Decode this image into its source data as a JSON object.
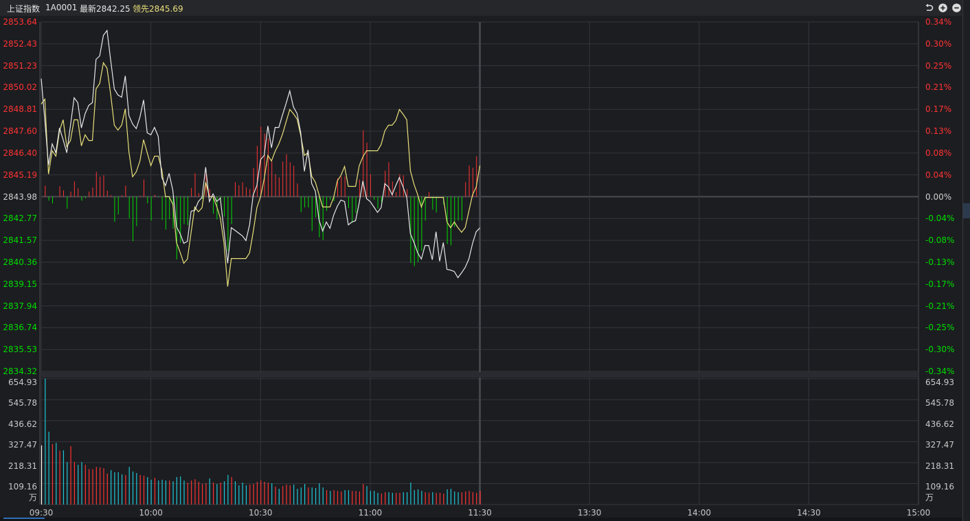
{
  "header": {
    "index_name": "上证指数",
    "code": "1A0001",
    "latest_label": "最新",
    "latest_value": "2842.25",
    "leading_label": "领先",
    "leading_value": "2845.69"
  },
  "toolbar": {
    "icons": [
      "undo-icon",
      "zoom-in-icon",
      "zoom-out-icon"
    ]
  },
  "colors": {
    "background": "#1c1d21",
    "grid": "#35363b",
    "up": "#ff3333",
    "down": "#00dd00",
    "volume_down": "#1ec8d8",
    "latest_line": "#e8e8e8",
    "leading_line": "#e8e07a"
  },
  "chart_data": [
    {
      "type": "line",
      "title": "",
      "x_unit": "time",
      "time_ticks": [
        "09:30",
        "10:00",
        "10:30",
        "11:00",
        "11:30",
        "13:30",
        "14:00",
        "14:30",
        "15:00"
      ],
      "start_time": "09:30",
      "minutes_per_point": 1,
      "prev_close": 2843.98,
      "ylim": [
        2834.32,
        2853.64
      ],
      "y_ticks_left": [
        "2853.64",
        "2852.43",
        "2851.23",
        "2850.02",
        "2848.81",
        "2847.60",
        "2846.40",
        "2845.19",
        "2843.98",
        "2842.77",
        "2841.57",
        "2840.36",
        "2839.15",
        "2837.94",
        "2836.74",
        "2835.53",
        "2834.32"
      ],
      "y_ticks_right": [
        "0.34%",
        "0.30%",
        "0.25%",
        "0.21%",
        "0.17%",
        "0.13%",
        "0.08%",
        "0.04%",
        "0.00%",
        "-0.04%",
        "-0.08%",
        "-0.13%",
        "-0.17%",
        "-0.21%",
        "-0.25%",
        "-0.30%",
        "-0.34%"
      ],
      "grid": true,
      "series": [
        {
          "name": "最新",
          "color": "#e8e8e8",
          "values": [
            2850.51,
            2848.19,
            2845.73,
            2846.9,
            2846.41,
            2847.78,
            2847.13,
            2846.41,
            2847.93,
            2849.45,
            2849.18,
            2847.78,
            2848.57,
            2849.03,
            2849.18,
            2851.57,
            2851.76,
            2852.9,
            2853.17,
            2851.53,
            2849.94,
            2849.6,
            2849.48,
            2850.66,
            2848.46,
            2848.0,
            2847.74,
            2848.38,
            2849.33,
            2847.51,
            2847.4,
            2847.81,
            2847.32,
            2845.04,
            2844.59,
            2845.27,
            2844.32,
            2842.31,
            2841.93,
            2841.4,
            2841.51,
            2843.18,
            2843.22,
            2843.71,
            2843.94,
            2845.61,
            2843.71,
            2844.13,
            2843.71,
            2843.9,
            2842.12,
            2840.3,
            2842.27,
            2842.12,
            2841.97,
            2841.82,
            2841.55,
            2842.42,
            2844.09,
            2844.59,
            2846.03,
            2846.26,
            2847.89,
            2846.68,
            2847.81,
            2847.81,
            2848.5,
            2849.14,
            2849.83,
            2848.95,
            2848.57,
            2847.51,
            2845.38,
            2846.56,
            2844.7,
            2844.28,
            2842.69,
            2842.08,
            2842.58,
            2842.23,
            2842.96,
            2843.45,
            2843.79,
            2843.71,
            2842.42,
            2842.58,
            2842.65,
            2843.64,
            2844.85,
            2843.87,
            2843.71,
            2843.41,
            2843.11,
            2843.37,
            2844.7,
            2844.51,
            2844.09,
            2844.59,
            2845.04,
            2844.51,
            2843.94,
            2841.93,
            2841.44,
            2840.87,
            2840.53,
            2841.28,
            2841.28,
            2840.49,
            2842.04,
            2840.41,
            2841.44,
            2839.96,
            2839.92,
            2839.84,
            2839.5,
            2839.77,
            2840.07,
            2840.53,
            2841.4,
            2842.04,
            2842.25
          ]
        },
        {
          "name": "领先",
          "color": "#e8e07a",
          "values": [
            2849.1,
            2849.37,
            2845.23,
            2846.52,
            2846.22,
            2847.62,
            2848.23,
            2846.75,
            2847.09,
            2848.23,
            2848.23,
            2846.79,
            2847.4,
            2847.09,
            2847.09,
            2849.94,
            2850.24,
            2851.38,
            2851.08,
            2849.64,
            2847.93,
            2847.66,
            2847.93,
            2848.84,
            2846.45,
            2845.08,
            2845.35,
            2845.95,
            2847.13,
            2846.41,
            2845.69,
            2846.22,
            2846.22,
            2845.46,
            2843.98,
            2843.98,
            2843.56,
            2841.44,
            2840.91,
            2840.3,
            2840.53,
            2842.01,
            2843.41,
            2843.14,
            2843.37,
            2844.78,
            2843.98,
            2843.98,
            2843.45,
            2842.8,
            2841.44,
            2839.01,
            2840.56,
            2840.56,
            2840.56,
            2840.56,
            2840.56,
            2840.87,
            2842.04,
            2843.37,
            2843.98,
            2844.97,
            2846.26,
            2845.95,
            2846.49,
            2846.9,
            2847.43,
            2848.12,
            2848.8,
            2848.57,
            2848.27,
            2847.36,
            2846.26,
            2846.41,
            2845.12,
            2844.78,
            2844.09,
            2843.41,
            2843.41,
            2843.41,
            2843.94,
            2844.85,
            2845.16,
            2845.65,
            2844.55,
            2844.55,
            2844.55,
            2845.69,
            2846.18,
            2846.52,
            2846.52,
            2846.52,
            2846.52,
            2846.86,
            2847.62,
            2847.93,
            2847.93,
            2848.19,
            2848.8,
            2848.54,
            2848.23,
            2845.42,
            2844.66,
            2844.09,
            2843.41,
            2843.94,
            2843.94,
            2843.94,
            2843.94,
            2843.94,
            2843.94,
            2842.58,
            2842.27,
            2842.58,
            2842.27,
            2842.01,
            2842.27,
            2843.18,
            2844.09,
            2844.51,
            2845.69
          ]
        }
      ],
      "strength_bars": {
        "baseline": 2843.98,
        "values": [
          0,
          0.61,
          -0.22,
          -0.37,
          0,
          0.58,
          0.35,
          -0.66,
          0.28,
          0.84,
          0.46,
          -0.22,
          -0.09,
          0.28,
          0.5,
          1.37,
          1.11,
          1.18,
          0.33,
          0.08,
          -1.39,
          -0.98,
          0.08,
          0.61,
          -1.19,
          -2.46,
          -1.63,
          0.04,
          0.95,
          -0.37,
          -1.32,
          0.1,
          -0.03,
          -1.29,
          -1.82,
          -1.25,
          -1.76,
          -3.47,
          -2.55,
          -1.52,
          -1.57,
          0.48,
          1.3,
          0.2,
          -0.13,
          1.26,
          0.42,
          -0.94,
          -1.26,
          -0.28,
          -1.1,
          -3.0,
          -1.52,
          0.8,
          0.63,
          0.8,
          0.52,
          0.42,
          1.59,
          2.81,
          3.87,
          3.49,
          3.23,
          1.94,
          1.24,
          1.07,
          1.94,
          2.35,
          1.9,
          1.71,
          0.73,
          -0.85,
          -0.6,
          -0.6,
          -1.9,
          -1.14,
          -2.24,
          -2.39,
          -0.79,
          -0.18,
          -0.25,
          1.01,
          1.11,
          1.11,
          -0.63,
          -1.44,
          -0.91,
          0.95,
          3.67,
          2.99,
          1.24,
          -0.18,
          -0.66,
          -0.3,
          1.43,
          1.9,
          0.84,
          0.25,
          1.24,
          1.18,
          0.42,
          -3.67,
          -3.84,
          -3.63,
          -3.0,
          -1.32,
          0.25,
          -0.72,
          -0.87,
          0,
          -0.43,
          -2.62,
          -2.69,
          -1.67,
          -1.32,
          -1.32,
          0.8,
          1.72,
          1.6,
          2.23,
          0
        ]
      }
    },
    {
      "type": "bar",
      "title": "",
      "unit_label": "万",
      "ylim": [
        0,
        654.93
      ],
      "y_ticks": [
        "654.93",
        "545.78",
        "436.62",
        "327.47",
        "218.31",
        "109.16"
      ],
      "grid": true,
      "values": [
        308,
        655,
        379,
        315,
        321,
        280,
        282,
        221,
        304,
        221,
        207,
        221,
        207,
        185,
        184,
        196,
        193,
        189,
        161,
        179,
        168,
        168,
        157,
        154,
        196,
        172,
        164,
        154,
        150,
        143,
        129,
        139,
        125,
        129,
        125,
        125,
        121,
        143,
        146,
        125,
        114,
        125,
        132,
        118,
        107,
        111,
        136,
        114,
        107,
        114,
        121,
        154,
        143,
        121,
        100,
        114,
        100,
        104,
        107,
        118,
        125,
        118,
        114,
        111,
        93,
        82,
        96,
        104,
        100,
        104,
        82,
        89,
        107,
        89,
        89,
        86,
        111,
        89,
        75,
        71,
        75,
        71,
        68,
        75,
        75,
        71,
        71,
        68,
        107,
        96,
        71,
        71,
        61,
        57,
        64,
        64,
        61,
        61,
        61,
        64,
        64,
        114,
        75,
        79,
        71,
        64,
        61,
        64,
        61,
        61,
        57,
        79,
        82,
        68,
        64,
        64,
        68,
        71,
        64,
        61,
        71
      ],
      "direction": [
        "flat",
        "down",
        "down",
        "up",
        "down",
        "up",
        "down",
        "down",
        "up",
        "up",
        "down",
        "down",
        "up",
        "up",
        "up",
        "up",
        "up",
        "up",
        "up",
        "down",
        "down",
        "down",
        "down",
        "up",
        "down",
        "down",
        "down",
        "up",
        "up",
        "down",
        "down",
        "up",
        "down",
        "down",
        "down",
        "up",
        "down",
        "down",
        "down",
        "down",
        "up",
        "up",
        "up",
        "up",
        "up",
        "up",
        "down",
        "up",
        "down",
        "up",
        "down",
        "down",
        "up",
        "down",
        "down",
        "down",
        "down",
        "up",
        "up",
        "up",
        "up",
        "up",
        "up",
        "down",
        "up",
        "down",
        "up",
        "up",
        "up",
        "down",
        "down",
        "down",
        "down",
        "up",
        "down",
        "down",
        "down",
        "down",
        "up",
        "down",
        "up",
        "up",
        "up",
        "down",
        "down",
        "up",
        "up",
        "up",
        "up",
        "down",
        "down",
        "down",
        "down",
        "up",
        "up",
        "down",
        "down",
        "up",
        "up",
        "down",
        "down",
        "down",
        "down",
        "down",
        "down",
        "up",
        "up",
        "down",
        "up",
        "up",
        "up",
        "down",
        "down",
        "down",
        "down",
        "up",
        "up",
        "up",
        "up",
        "up",
        "up"
      ]
    }
  ]
}
